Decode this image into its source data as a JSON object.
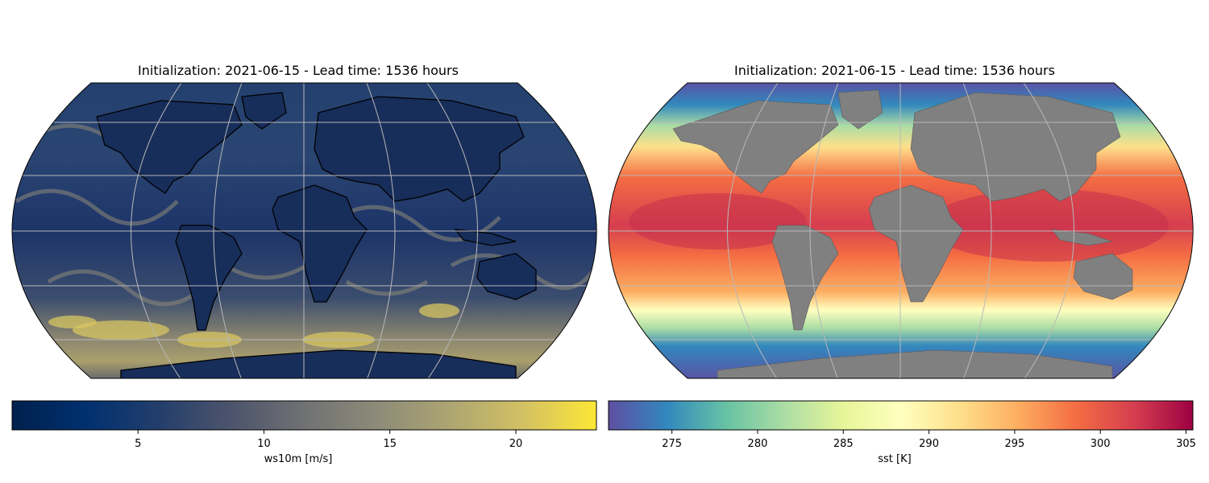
{
  "panels": [
    {
      "title": "Initialization: 2021-06-15 - Lead time: 1536 hours",
      "variable": "ws10m",
      "colorbar_label": "ws10m [m/s]",
      "colormap": "cividis",
      "colormap_colors": [
        "#00204d",
        "#00306f",
        "#233e6c",
        "#4d546c",
        "#707173",
        "#8d8b78",
        "#ada572",
        "#d3c163",
        "#fde737"
      ],
      "range": [
        0,
        23.2
      ],
      "ticks": [
        "5",
        "10",
        "15",
        "20"
      ],
      "tick_values": [
        5,
        10,
        15,
        20
      ],
      "ocean_color": "#1e3a70",
      "land_color": "#172d5a",
      "coastline_color": "#000000"
    },
    {
      "title": "Initialization: 2021-06-15 - Lead time: 1536 hours",
      "variable": "sst",
      "colorbar_label": "sst [K]",
      "colormap": "Spectral_r",
      "colormap_colors": [
        "#5e4fa2",
        "#3288bd",
        "#66c2a5",
        "#abdda4",
        "#e6f598",
        "#ffffbf",
        "#fee08b",
        "#fdae61",
        "#f46d43",
        "#d53e4f",
        "#9e0142"
      ],
      "range": [
        271.3,
        305.4
      ],
      "ticks": [
        "275",
        "280",
        "285",
        "290",
        "295",
        "300",
        "305"
      ],
      "tick_values": [
        275,
        280,
        285,
        290,
        295,
        300,
        305
      ],
      "land_color": "#808080",
      "coastline_color": "#000000"
    }
  ]
}
